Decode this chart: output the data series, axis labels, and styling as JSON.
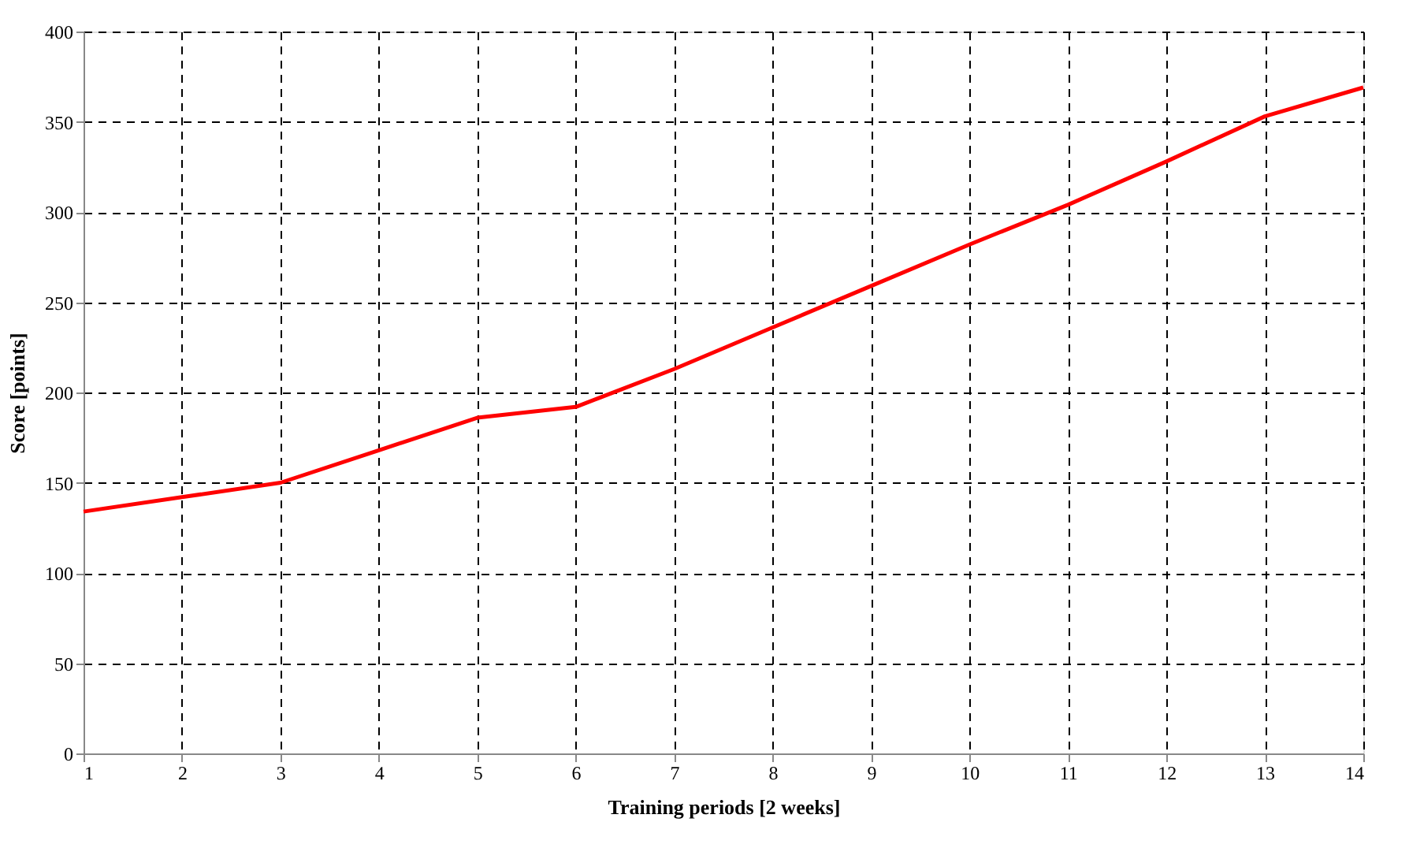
{
  "chart_data": {
    "type": "line",
    "xlabel": "Training periods [2 weeks]",
    "ylabel": "Score [points]",
    "x": [
      1,
      2,
      3,
      4,
      5,
      6,
      7,
      8,
      9,
      10,
      11,
      12,
      13,
      14
    ],
    "series": [
      {
        "color": "#ff0000",
        "values": [
          134,
          142,
          150,
          168,
          186,
          192,
          213,
          236,
          259,
          282,
          304,
          328,
          353,
          369
        ]
      }
    ],
    "xlim": [
      1,
      14
    ],
    "xticks": [
      1,
      2,
      3,
      4,
      5,
      6,
      7,
      8,
      9,
      10,
      11,
      12,
      13,
      14
    ],
    "ylim": [
      0,
      400
    ],
    "yticks": [
      0,
      50,
      100,
      150,
      200,
      250,
      300,
      350,
      400
    ],
    "grid": true,
    "marker": "none",
    "line_style": "solid"
  }
}
